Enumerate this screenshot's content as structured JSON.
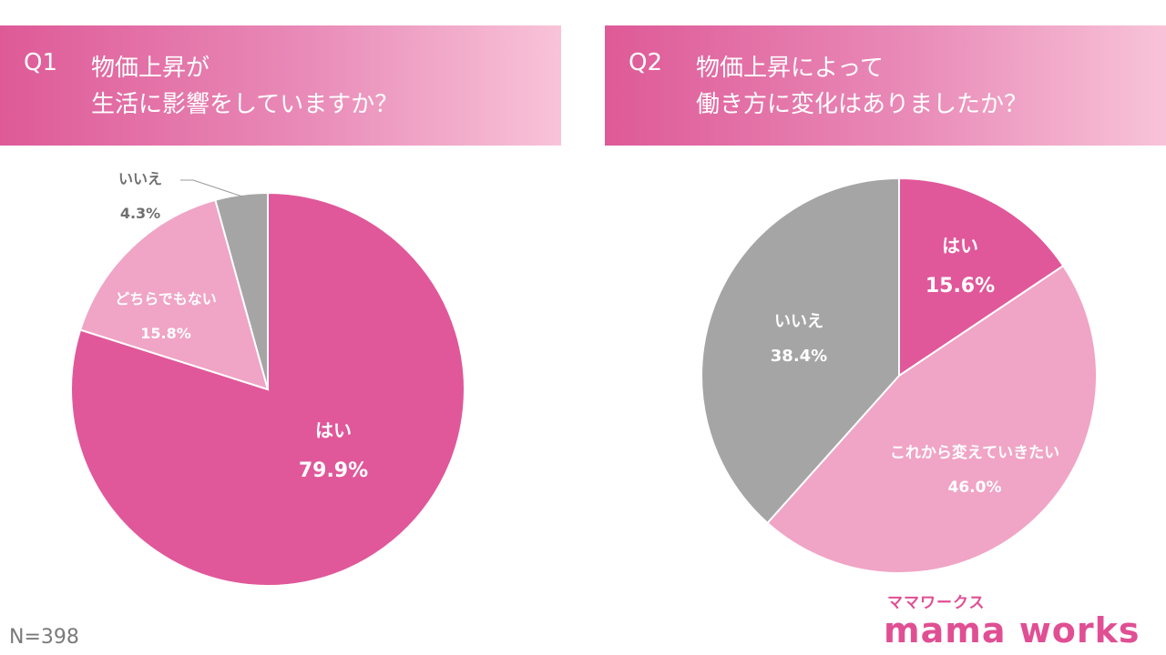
{
  "q1": {
    "number": "Q1",
    "line1": "物価上昇が",
    "line2": "生活に影響をしていますか？"
  },
  "q2": {
    "number": "Q2",
    "line1": "物価上昇によって",
    "line2": "働き方に変化はありましたか？"
  },
  "footer": {
    "n_label": "N=398"
  },
  "logo": {
    "kana": "ママワークス",
    "text": "mama works"
  },
  "colors": {
    "banner_start": "#de5a97",
    "banner_end": "#f8c3d8",
    "pink_dark": "#e0589a",
    "pink_light": "#f0a4c6",
    "gray": "#a5a5a5"
  },
  "chart_data": [
    {
      "type": "pie",
      "title": "",
      "slices": [
        {
          "label": "はい",
          "value": 79.9,
          "display": "79.9%",
          "color": "#e0589a"
        },
        {
          "label": "どちらでもない",
          "value": 15.8,
          "display": "15.8%",
          "color": "#f0a4c6"
        },
        {
          "label": "いいえ",
          "value": 4.3,
          "display": "4.3%",
          "color": "#a5a5a5"
        }
      ]
    },
    {
      "type": "pie",
      "title": "",
      "slices": [
        {
          "label": "はい",
          "value": 15.6,
          "display": "15.6%",
          "color": "#e0589a"
        },
        {
          "label": "これから変えていきたい",
          "value": 46.0,
          "display": "46.0%",
          "color": "#f0a4c6"
        },
        {
          "label": "いいえ",
          "value": 38.4,
          "display": "38.4%",
          "color": "#a5a5a5"
        }
      ]
    }
  ]
}
